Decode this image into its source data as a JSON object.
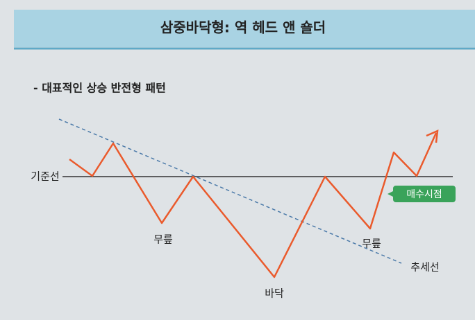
{
  "header": {
    "title": "삼중바닥형: 역 헤드 앤 숄더"
  },
  "subtitle": "- 대표적인 상승 반전형 패턴",
  "labels": {
    "baseline": "기준선",
    "left_shoulder": "무릎",
    "head": "바닥",
    "right_shoulder": "무릎",
    "trendline": "추세선",
    "buy_point": "매수시점"
  }
}
